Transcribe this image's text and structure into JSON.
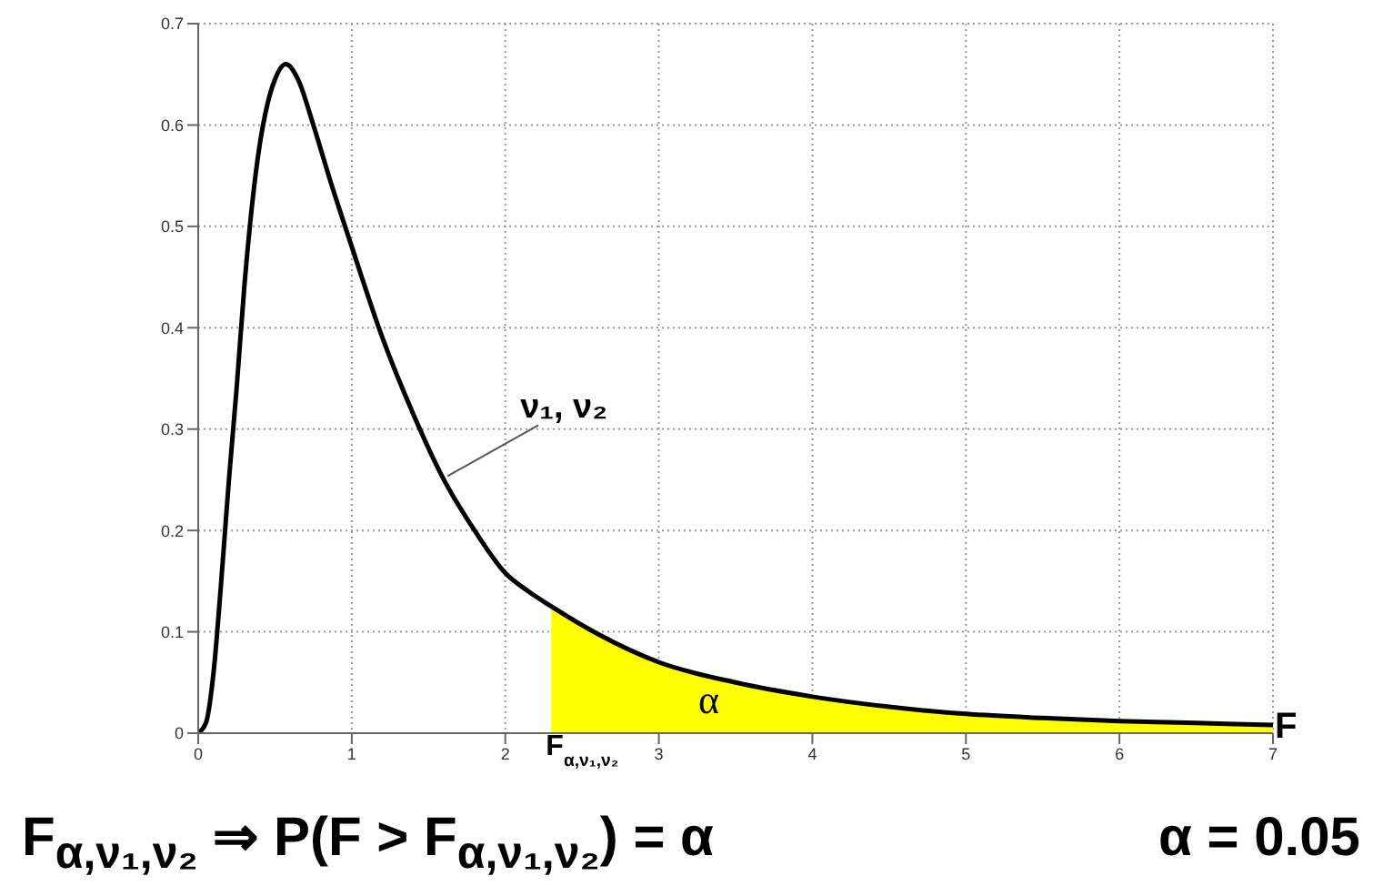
{
  "chart_data": {
    "type": "line",
    "xlim": [
      0,
      7
    ],
    "xticks": [
      0,
      1,
      2,
      3,
      4,
      5,
      6,
      7
    ],
    "ylim": [
      0,
      0.7
    ],
    "yticks": [
      0,
      0.1,
      0.2,
      0.3,
      0.4,
      0.5,
      0.6,
      0.7
    ],
    "grid": true,
    "marker": "none",
    "line_style": "solid",
    "series": [
      {
        "color": "#000000",
        "x": [
          0,
          0.05,
          0.1,
          0.15,
          0.2,
          0.25,
          0.3,
          0.35,
          0.4,
          0.45,
          0.5,
          0.57,
          0.65,
          0.75,
          0.85,
          1,
          1.2,
          1.4,
          1.6,
          1.8,
          2,
          2.15,
          2.3,
          2.6,
          3,
          3.5,
          4,
          4.5,
          5,
          5.5,
          6,
          6.5,
          7
        ],
        "values": [
          0,
          0.01,
          0.06,
          0.15,
          0.25,
          0.34,
          0.44,
          0.52,
          0.58,
          0.62,
          0.645,
          0.66,
          0.645,
          0.6,
          0.55,
          0.48,
          0.39,
          0.315,
          0.25,
          0.2,
          0.158,
          0.14,
          0.125,
          0.098,
          0.07,
          0.05,
          0.036,
          0.026,
          0.019,
          0.015,
          0.012,
          0.01,
          0.008
        ]
      },
      {
        "type": "area",
        "color": "#ffff00",
        "x": [
          2.3,
          2.6,
          3,
          3.5,
          4,
          4.5,
          5,
          5.5,
          6,
          6.5,
          7
        ],
        "values": [
          0.125,
          0.098,
          0.07,
          0.05,
          0.036,
          0.026,
          0.019,
          0.015,
          0.012,
          0.01,
          0.008
        ]
      }
    ],
    "annotations": [
      {
        "text": "ν₁, ν₂",
        "x": 1.6,
        "y": 0.25
      },
      "α",
      {
        "text": "F$_{α,ν₁,ν₂}$",
        "x": 2.3,
        "y": 0
      },
      {
        "text": "F",
        "x": 7,
        "y": 0.008
      },
      "F$_{α,ν₁,ν₂}$ ⇒ P(F > F$_{α,ν₁,ν₂}$) = α",
      "α = 0.05"
    ]
  }
}
